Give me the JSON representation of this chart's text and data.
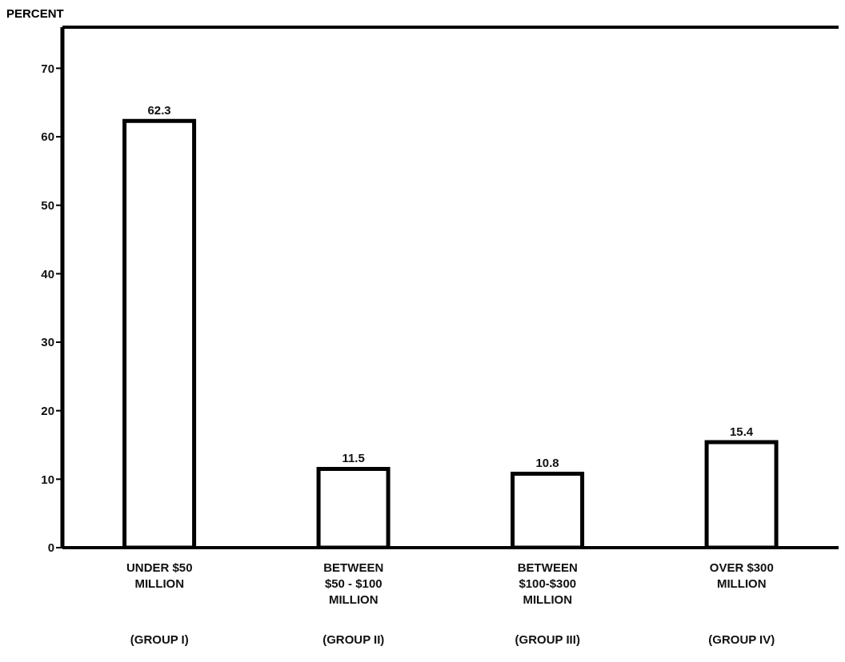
{
  "chart_data": {
    "type": "bar",
    "ylabel": "PERCENT",
    "categories": [
      "UNDER $50\nMILLION\n\n(GROUP I)",
      "BETWEEN\n$50 - $100\nMILLION\n(GROUP II)",
      "BETWEEN\n$100-$300\nMILLION\n(GROUP III)",
      "OVER $300\nMILLION\n\n(GROUP IV)"
    ],
    "values": [
      62.3,
      11.5,
      10.8,
      15.4
    ],
    "color": "#ffffff",
    "ylim": [
      0,
      76
    ],
    "yticks": [
      0,
      10,
      20,
      30,
      40,
      50,
      60,
      70
    ],
    "data_labels": true
  }
}
